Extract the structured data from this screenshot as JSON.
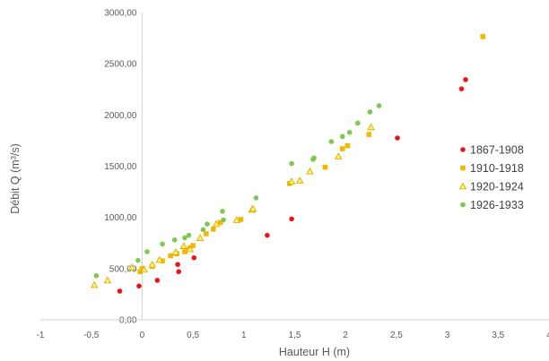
{
  "chart_data": {
    "type": "scatter",
    "title": "",
    "xlabel": "Hauteur H (m)",
    "ylabel": "Débit Q (m³/s)",
    "xlim": [
      -1,
      4
    ],
    "ylim": [
      0,
      3000
    ],
    "x_ticks": [
      "-1",
      "-0,5",
      "0",
      "0,5",
      "1",
      "1,5",
      "2",
      "2,5",
      "3",
      "3,5",
      "4"
    ],
    "y_ticks": [
      "0,00",
      "500,00",
      "1000,00",
      "1500,00",
      "2000,00",
      "2500,00",
      "3000,00"
    ],
    "grid": false,
    "legend_position": "right",
    "series": [
      {
        "name": "1867-1908",
        "color": "#e8161b",
        "marker": "circle",
        "points": [
          [
            -0.22,
            280
          ],
          [
            -0.03,
            330
          ],
          [
            0.15,
            385
          ],
          [
            0.36,
            470
          ],
          [
            0.35,
            540
          ],
          [
            0.51,
            605
          ],
          [
            1.23,
            825
          ],
          [
            1.47,
            985
          ],
          [
            2.51,
            1775
          ],
          [
            3.14,
            2255
          ],
          [
            3.18,
            2345
          ]
        ]
      },
      {
        "name": "1910-1918",
        "color": "#f5b800",
        "marker": "square",
        "points": [
          [
            -0.02,
            470
          ],
          [
            0.0,
            500
          ],
          [
            0.1,
            520
          ],
          [
            0.2,
            575
          ],
          [
            0.28,
            625
          ],
          [
            0.34,
            645
          ],
          [
            0.42,
            665
          ],
          [
            0.47,
            700
          ],
          [
            0.5,
            725
          ],
          [
            0.63,
            840
          ],
          [
            0.7,
            885
          ],
          [
            0.77,
            950
          ],
          [
            0.97,
            980
          ],
          [
            1.45,
            1330
          ],
          [
            1.8,
            1490
          ],
          [
            1.97,
            1670
          ],
          [
            2.02,
            1700
          ],
          [
            2.23,
            1810
          ],
          [
            3.35,
            2765
          ]
        ]
      },
      {
        "name": "1920-1924",
        "color": "#fff26b",
        "marker": "triangle",
        "points": [
          [
            -0.47,
            340
          ],
          [
            -0.34,
            385
          ],
          [
            -0.1,
            510
          ],
          [
            0.02,
            490
          ],
          [
            0.1,
            540
          ],
          [
            0.17,
            585
          ],
          [
            0.33,
            660
          ],
          [
            0.41,
            720
          ],
          [
            0.47,
            690
          ],
          [
            0.57,
            800
          ],
          [
            0.73,
            935
          ],
          [
            0.93,
            975
          ],
          [
            1.08,
            1075
          ],
          [
            1.09,
            1085
          ],
          [
            1.47,
            1350
          ],
          [
            1.55,
            1360
          ],
          [
            1.65,
            1450
          ],
          [
            1.93,
            1595
          ],
          [
            2.25,
            1880
          ]
        ]
      },
      {
        "name": "1926-1933",
        "color": "#7ec850",
        "marker": "circle",
        "points": [
          [
            -0.45,
            430
          ],
          [
            -0.04,
            580
          ],
          [
            0.05,
            665
          ],
          [
            0.2,
            740
          ],
          [
            0.32,
            780
          ],
          [
            0.42,
            800
          ],
          [
            0.46,
            825
          ],
          [
            0.6,
            880
          ],
          [
            0.64,
            935
          ],
          [
            0.79,
            1060
          ],
          [
            0.8,
            975
          ],
          [
            1.12,
            1190
          ],
          [
            1.47,
            1525
          ],
          [
            1.68,
            1565
          ],
          [
            1.69,
            1580
          ],
          [
            1.86,
            1740
          ],
          [
            1.97,
            1790
          ],
          [
            2.04,
            1830
          ],
          [
            2.12,
            1920
          ],
          [
            2.24,
            2030
          ],
          [
            2.33,
            2090
          ]
        ]
      }
    ]
  }
}
